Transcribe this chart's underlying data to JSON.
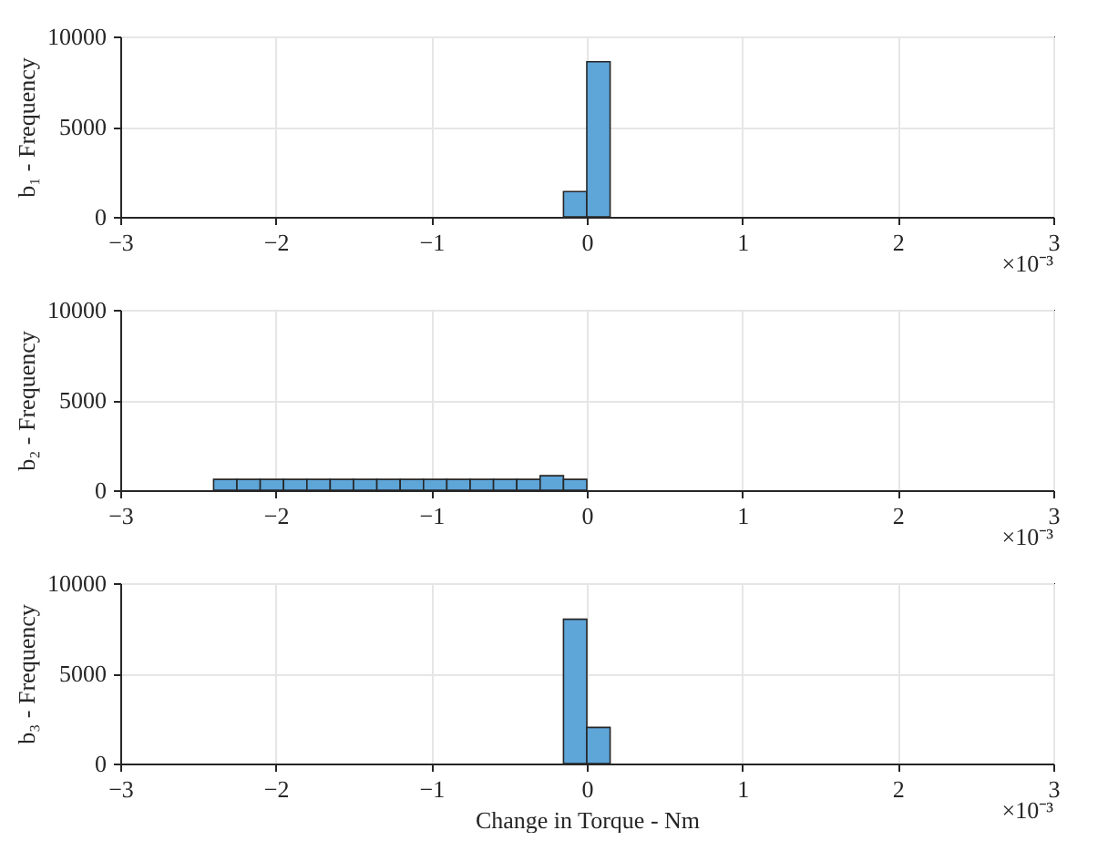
{
  "chart_data": [
    {
      "type": "histogram",
      "ylabel": "b₁ - Frequency",
      "bins": [
        -0.15,
        0,
        0.15
      ],
      "values": [
        1400,
        8600
      ],
      "color": "#5ea5d8",
      "xlim": [
        -3,
        3
      ],
      "xticks": [
        -3,
        -2,
        -1,
        0,
        1,
        2,
        3
      ],
      "ylim": [
        0,
        10000
      ],
      "yticks": [
        0,
        5000,
        10000
      ],
      "grid": true,
      "annotations": [
        "×10⁻³"
      ]
    },
    {
      "type": "histogram",
      "ylabel": "b₂ - Frequency",
      "bins": [
        -2.4,
        -2.25,
        -2.1,
        -1.95,
        -1.8,
        -1.65,
        -1.5,
        -1.35,
        -1.2,
        -1.05,
        -0.9,
        -0.75,
        -0.6,
        -0.45,
        -0.3,
        -0.15,
        0
      ],
      "values": [
        600,
        600,
        600,
        600,
        600,
        600,
        600,
        600,
        600,
        600,
        600,
        600,
        600,
        600,
        800,
        600
      ],
      "color": "#5ea5d8",
      "xlim": [
        -3,
        3
      ],
      "xticks": [
        -3,
        -2,
        -1,
        0,
        1,
        2,
        3
      ],
      "ylim": [
        0,
        10000
      ],
      "yticks": [
        0,
        5000,
        10000
      ],
      "grid": true,
      "annotations": [
        "×10⁻³"
      ]
    },
    {
      "type": "histogram",
      "ylabel": "b₃ - Frequency",
      "xlabel": "Change in Torque - Nm",
      "bins": [
        -0.15,
        0,
        0.15
      ],
      "values": [
        8000,
        2000
      ],
      "color": "#5ea5d8",
      "xlim": [
        -3,
        3
      ],
      "xticks": [
        -3,
        -2,
        -1,
        0,
        1,
        2,
        3
      ],
      "ylim": [
        0,
        10000
      ],
      "yticks": [
        0,
        5000,
        10000
      ],
      "grid": true,
      "annotations": [
        "×10⁻³"
      ]
    }
  ]
}
